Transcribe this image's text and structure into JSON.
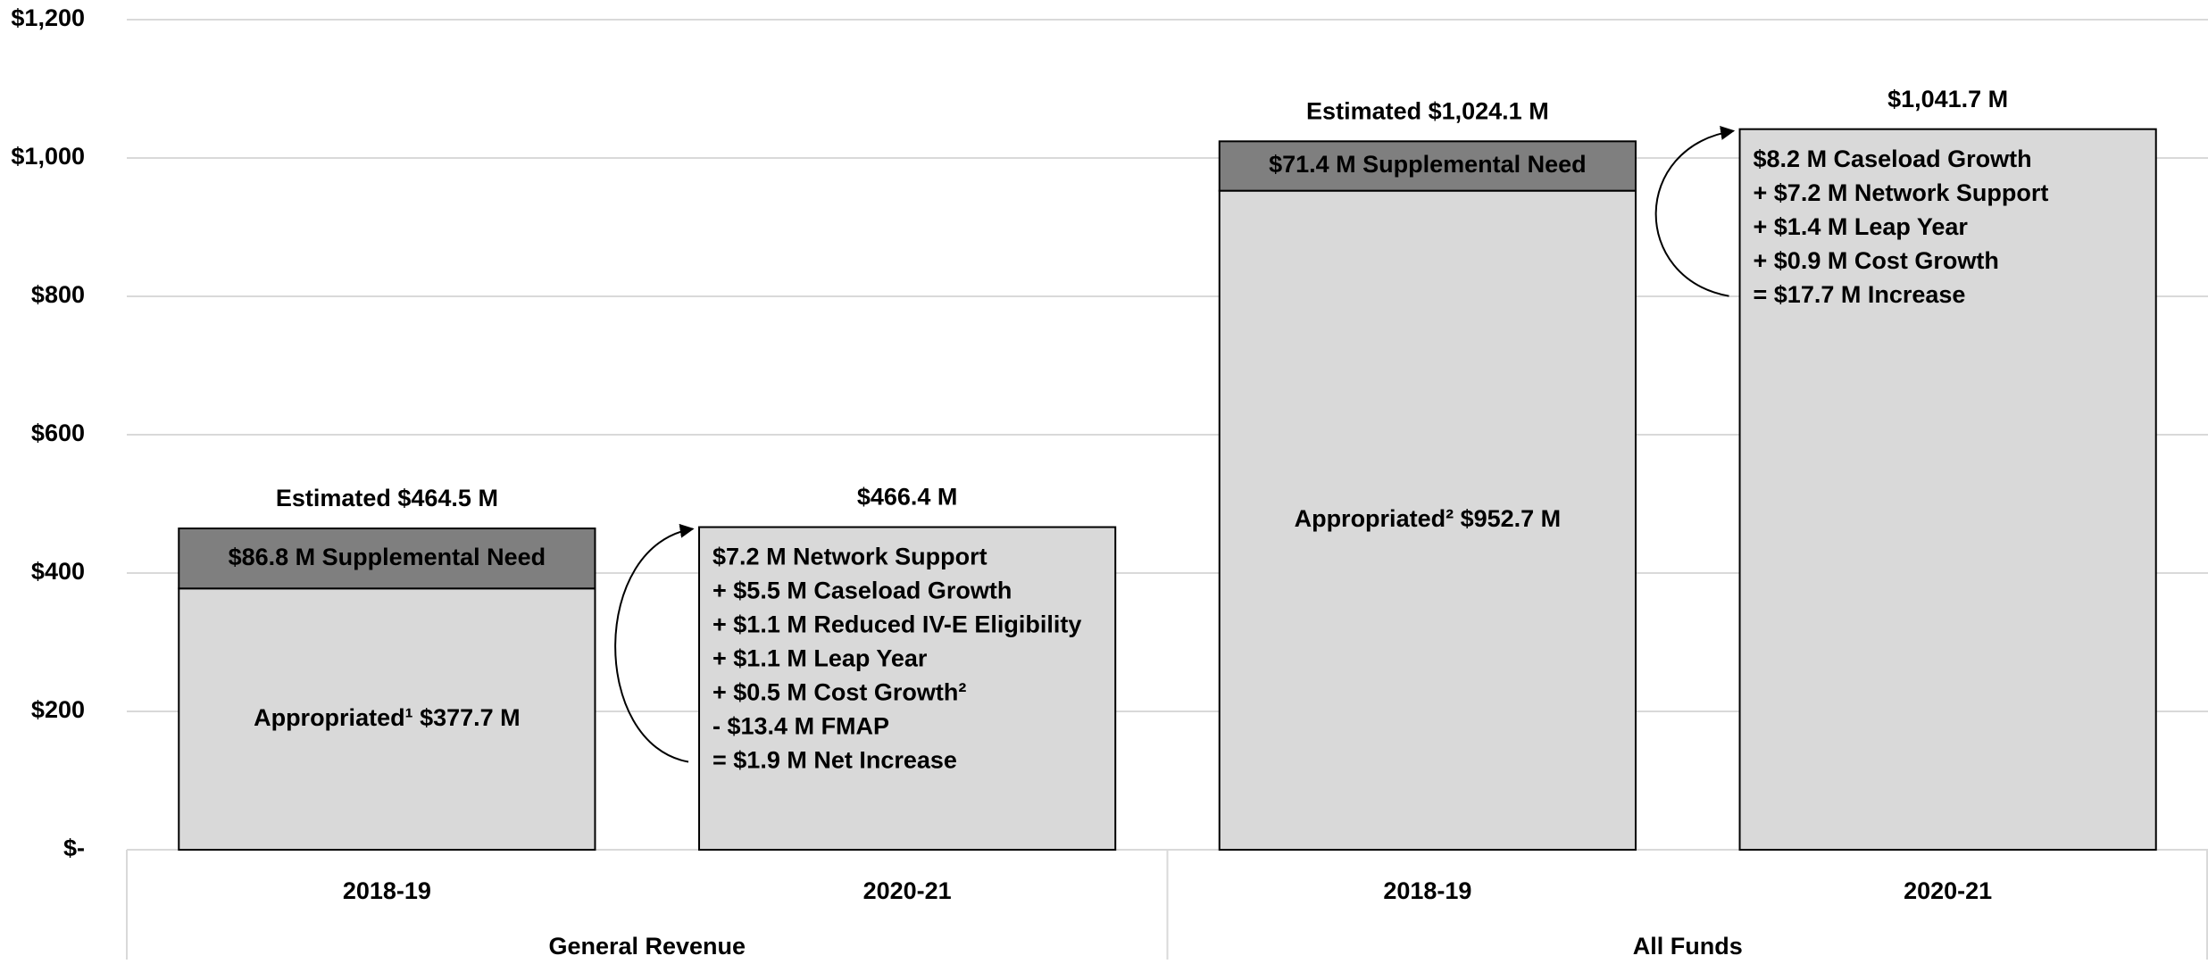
{
  "chart_data": {
    "type": "stacked_bar",
    "categories": [
      "2018-19",
      "2020-21",
      "2018-19",
      "2020-21"
    ],
    "groups": [
      "General Revenue",
      "All Funds"
    ],
    "series": [
      {
        "color": "#d9d9d9",
        "values": [
          377.7,
          466.4,
          952.7,
          1041.7
        ],
        "value_labels": [
          "Appropriated¹ $377.7 M",
          "$466.4 M",
          "Appropriated² $952.7 M",
          "$1,041.7 M"
        ]
      },
      {
        "color": "#7f7f7f",
        "values": [
          86.8,
          null,
          71.4,
          null
        ],
        "value_labels": [
          "$86.8 M Supplemental Need",
          null,
          "$71.4 M Supplemental Need",
          null
        ]
      }
    ],
    "totals": [
      464.5,
      null,
      1024.1,
      null
    ],
    "total_labels": [
      "Estimated $464.5 M",
      null,
      "Estimated $1,024.1 M",
      null
    ],
    "notes": [
      null,
      [
        "$7.2 M Network Support",
        "+ $5.5 M Caseload Growth",
        "+ $1.1 M Reduced IV-E Eligibility",
        "+ $1.1 M Leap Year",
        "+ $0.5 M Cost Growth²",
        "- $13.4 M FMAP",
        "= $1.9 M Net Increase"
      ],
      null,
      [
        "$8.2 M Caseload Growth",
        "+ $7.2 M Network Support",
        "+ $1.4 M Leap Year",
        "+ $0.9 M Cost Growth",
        "= $17.7 M Increase"
      ]
    ],
    "ylim": [
      0,
      1200
    ],
    "yticks": [
      {
        "value": 0,
        "label": "$-"
      },
      {
        "value": 200,
        "label": "$200"
      },
      {
        "value": 400,
        "label": "$400"
      },
      {
        "value": 600,
        "label": "$600"
      },
      {
        "value": 800,
        "label": "$800"
      },
      {
        "value": 1000,
        "label": "$1,000"
      },
      {
        "value": 1200,
        "label": "$1,200"
      }
    ],
    "grid": true
  }
}
